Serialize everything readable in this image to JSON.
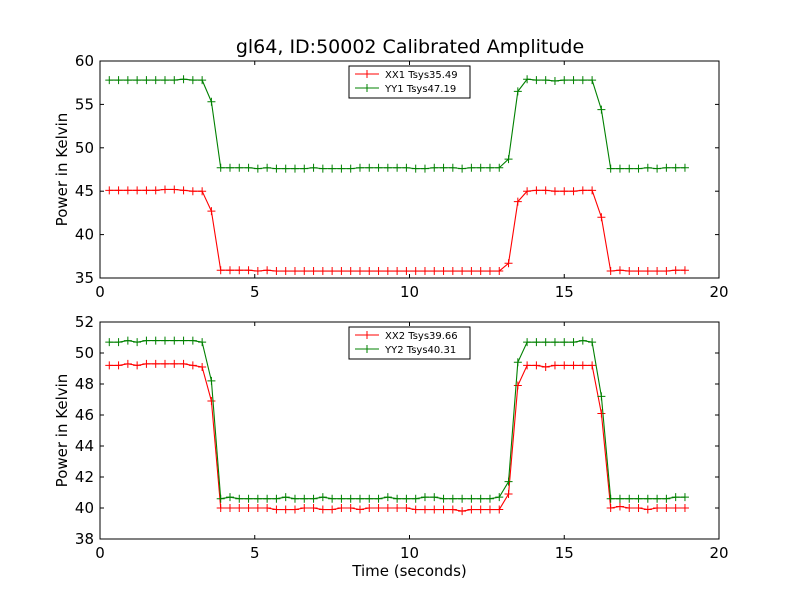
{
  "figure": {
    "title": "gl64, ID:50002 Calibrated Amplitude",
    "colors": {
      "red": "#ff0000",
      "green": "#008000"
    }
  },
  "chart_data": [
    {
      "type": "line",
      "title": "gl64, ID:50002 Calibrated Amplitude",
      "xlabel": "",
      "ylabel": "Power in Kelvin",
      "xlim": [
        0,
        20
      ],
      "ylim": [
        35,
        60
      ],
      "xticks": [
        0,
        5,
        10,
        15,
        20
      ],
      "yticks": [
        35,
        40,
        45,
        50,
        55,
        60
      ],
      "grid": false,
      "legend_position": "top-center",
      "marker": "plus",
      "x": [
        0.3,
        0.6,
        0.9,
        1.2,
        1.5,
        1.8,
        2.1,
        2.4,
        2.7,
        3.0,
        3.3,
        3.6,
        3.9,
        4.2,
        4.5,
        4.8,
        5.1,
        5.4,
        5.7,
        6.0,
        6.3,
        6.6,
        6.9,
        7.2,
        7.5,
        7.8,
        8.1,
        8.4,
        8.7,
        9.0,
        9.3,
        9.6,
        9.9,
        10.2,
        10.5,
        10.8,
        11.1,
        11.4,
        11.7,
        12.0,
        12.3,
        12.6,
        12.9,
        13.2,
        13.5,
        13.8,
        14.1,
        14.4,
        14.7,
        15.0,
        15.3,
        15.6,
        15.9,
        16.2,
        16.5,
        16.8,
        17.1,
        17.4,
        17.7,
        18.0,
        18.3,
        18.6,
        18.9
      ],
      "series": [
        {
          "name": "XX1 Tsys35.49",
          "color": "#ff0000",
          "values": [
            45.1,
            45.1,
            45.1,
            45.1,
            45.1,
            45.1,
            45.2,
            45.2,
            45.1,
            45.0,
            45.0,
            42.7,
            35.9,
            35.9,
            35.9,
            35.9,
            35.8,
            35.9,
            35.8,
            35.8,
            35.8,
            35.8,
            35.8,
            35.8,
            35.8,
            35.8,
            35.8,
            35.8,
            35.8,
            35.8,
            35.8,
            35.8,
            35.8,
            35.8,
            35.8,
            35.8,
            35.8,
            35.8,
            35.8,
            35.8,
            35.8,
            35.8,
            35.8,
            36.7,
            43.8,
            45.0,
            45.1,
            45.1,
            45.0,
            45.0,
            45.0,
            45.1,
            45.1,
            42.0,
            35.8,
            35.9,
            35.8,
            35.8,
            35.8,
            35.8,
            35.8,
            35.9,
            35.9
          ]
        },
        {
          "name": "YY1 Tsys47.19",
          "color": "#008000",
          "values": [
            57.8,
            57.8,
            57.8,
            57.8,
            57.8,
            57.8,
            57.8,
            57.8,
            57.9,
            57.8,
            57.8,
            55.3,
            47.7,
            47.7,
            47.7,
            47.7,
            47.6,
            47.7,
            47.6,
            47.6,
            47.6,
            47.6,
            47.7,
            47.6,
            47.6,
            47.6,
            47.6,
            47.7,
            47.7,
            47.7,
            47.7,
            47.7,
            47.7,
            47.6,
            47.6,
            47.7,
            47.7,
            47.7,
            47.6,
            47.7,
            47.7,
            47.7,
            47.7,
            48.7,
            56.5,
            57.9,
            57.8,
            57.8,
            57.7,
            57.8,
            57.8,
            57.8,
            57.8,
            54.4,
            47.6,
            47.6,
            47.6,
            47.6,
            47.7,
            47.6,
            47.7,
            47.7,
            47.7
          ]
        }
      ]
    },
    {
      "type": "line",
      "title": "",
      "xlabel": "Time (seconds)",
      "ylabel": "Power in Kelvin",
      "xlim": [
        0,
        20
      ],
      "ylim": [
        38,
        52
      ],
      "xticks": [
        0,
        5,
        10,
        15,
        20
      ],
      "yticks": [
        38,
        40,
        42,
        44,
        46,
        48,
        50,
        52
      ],
      "grid": false,
      "legend_position": "top-center",
      "marker": "plus",
      "x": [
        0.3,
        0.6,
        0.9,
        1.2,
        1.5,
        1.8,
        2.1,
        2.4,
        2.7,
        3.0,
        3.3,
        3.6,
        3.9,
        4.2,
        4.5,
        4.8,
        5.1,
        5.4,
        5.7,
        6.0,
        6.3,
        6.6,
        6.9,
        7.2,
        7.5,
        7.8,
        8.1,
        8.4,
        8.7,
        9.0,
        9.3,
        9.6,
        9.9,
        10.2,
        10.5,
        10.8,
        11.1,
        11.4,
        11.7,
        12.0,
        12.3,
        12.6,
        12.9,
        13.2,
        13.5,
        13.8,
        14.1,
        14.4,
        14.7,
        15.0,
        15.3,
        15.6,
        15.9,
        16.2,
        16.5,
        16.8,
        17.1,
        17.4,
        17.7,
        18.0,
        18.3,
        18.6,
        18.9
      ],
      "series": [
        {
          "name": "XX2 Tsys39.66",
          "color": "#ff0000",
          "values": [
            49.2,
            49.2,
            49.3,
            49.2,
            49.3,
            49.3,
            49.3,
            49.3,
            49.3,
            49.2,
            49.1,
            46.9,
            40.0,
            40.0,
            40.0,
            40.0,
            40.0,
            40.0,
            39.9,
            39.9,
            39.9,
            40.0,
            40.0,
            39.9,
            39.9,
            40.0,
            40.0,
            39.9,
            40.0,
            40.0,
            40.0,
            40.0,
            40.0,
            39.9,
            39.9,
            39.9,
            39.9,
            39.9,
            39.8,
            39.9,
            39.9,
            39.9,
            39.9,
            40.9,
            47.9,
            49.2,
            49.2,
            49.1,
            49.2,
            49.2,
            49.2,
            49.2,
            49.2,
            46.1,
            40.0,
            40.1,
            40.0,
            40.0,
            39.9,
            40.0,
            40.0,
            40.0,
            40.0
          ]
        },
        {
          "name": "YY2 Tsys40.31",
          "color": "#008000",
          "values": [
            50.7,
            50.7,
            50.8,
            50.7,
            50.8,
            50.8,
            50.8,
            50.8,
            50.8,
            50.8,
            50.7,
            48.2,
            40.6,
            40.7,
            40.6,
            40.6,
            40.6,
            40.6,
            40.6,
            40.7,
            40.6,
            40.6,
            40.6,
            40.7,
            40.6,
            40.6,
            40.6,
            40.6,
            40.6,
            40.6,
            40.7,
            40.6,
            40.6,
            40.6,
            40.7,
            40.7,
            40.6,
            40.6,
            40.6,
            40.6,
            40.6,
            40.6,
            40.7,
            41.7,
            49.4,
            50.7,
            50.7,
            50.7,
            50.7,
            50.7,
            50.7,
            50.8,
            50.7,
            47.2,
            40.6,
            40.6,
            40.6,
            40.6,
            40.6,
            40.6,
            40.6,
            40.7,
            40.7
          ]
        }
      ]
    }
  ]
}
